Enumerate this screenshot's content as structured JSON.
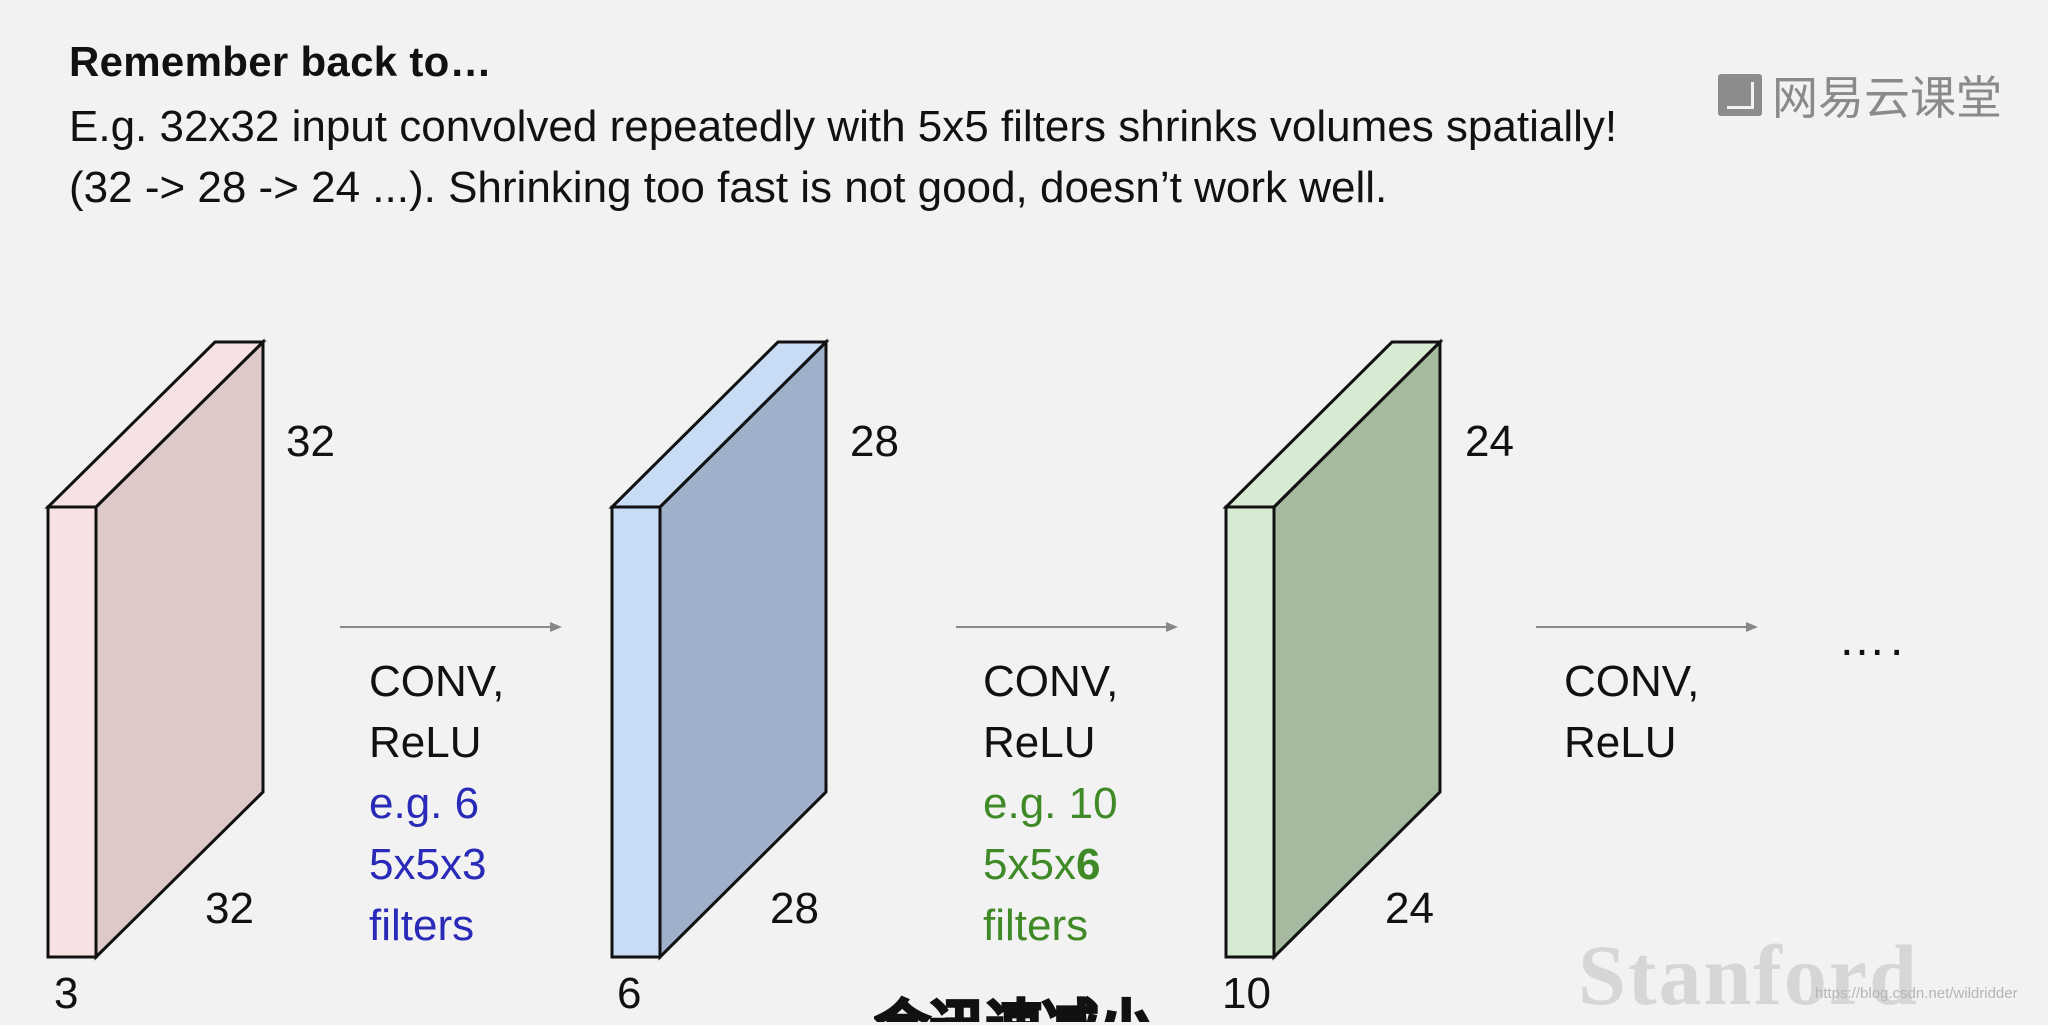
{
  "slide": {
    "title": "Remember back to…",
    "line1": "E.g. 32x32 input convolved repeatedly with 5x5 filters shrinks volumes spatially!",
    "line2": "(32 -> 28 -> 24 ...). Shrinking too fast is not good, doesn’t work well."
  },
  "watermark": {
    "logo_text": "网易云课堂",
    "institution": "Stanford",
    "url": "https://blog.csdn.net/wildridder"
  },
  "subtitle": "会迅速减小",
  "volumes": [
    {
      "height": "32",
      "width": "32",
      "depth": "3",
      "front_color": "#f6e2e2",
      "side_color": "#dcc9c8"
    },
    {
      "height": "28",
      "width": "28",
      "depth": "6",
      "front_color": "#c8dcf6",
      "side_color": "#9fb0ca"
    },
    {
      "height": "24",
      "width": "24",
      "depth": "10",
      "front_color": "#d7ebd2",
      "side_color": "#a6baa0"
    }
  ],
  "steps": [
    {
      "op": "CONV,",
      "act": "ReLU",
      "detail1": "e.g. 6",
      "detail2": "5x5x3",
      "detail3": "filters",
      "color": "#2a2ab8"
    },
    {
      "op": "CONV,",
      "act": "ReLU",
      "detail1": "e.g. 10",
      "detail2a": "5x5x",
      "detail2b": "6",
      "detail3": "filters",
      "color": "#3f8a27"
    },
    {
      "op": "CONV,",
      "act": "ReLU"
    }
  ],
  "ellipsis": "….",
  "arrow_color": "#888888",
  "edge_color": "#111111"
}
